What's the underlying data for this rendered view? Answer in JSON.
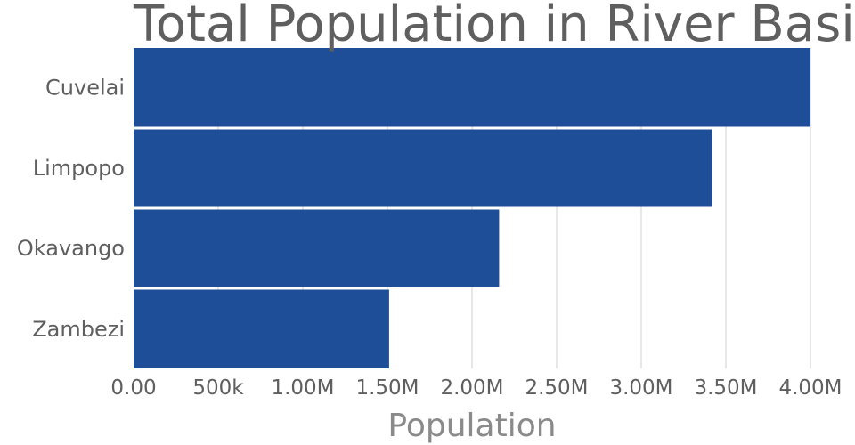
{
  "chart_data": {
    "type": "bar",
    "orientation": "horizontal",
    "title": "Total Population in River Basins",
    "xlabel": "Population",
    "ylabel": "",
    "categories": [
      "Cuvelai",
      "Limpopo",
      "Okavango",
      "Zambezi"
    ],
    "values": [
      4000000,
      3420000,
      2160000,
      1510000
    ],
    "xlim": [
      0,
      4000000
    ],
    "xticks": [
      0,
      500000,
      1000000,
      1500000,
      2000000,
      2500000,
      3000000,
      3500000,
      4000000
    ],
    "xtick_labels": [
      "0.00",
      "500k",
      "1.00M",
      "1.50M",
      "2.00M",
      "2.50M",
      "3.00M",
      "3.50M",
      "4.00M"
    ],
    "grid": "vertical",
    "legend": "none",
    "bar_color": "#1f4e98"
  }
}
